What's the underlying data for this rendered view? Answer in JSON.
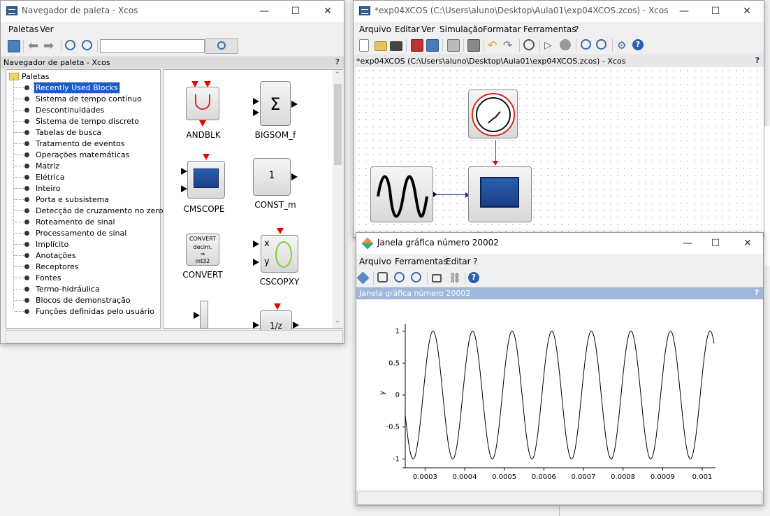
{
  "palette_window": {
    "title": "Navegador de paleta - Xcos",
    "menu": [
      "Paletas",
      "Ver"
    ],
    "search_value": "",
    "subheader": "Navegador de paleta - Xcos",
    "help": "?",
    "tree_root": "Paletas",
    "tree_items": [
      "Recently Used Blocks",
      "Sistema de tempo contínuo",
      "Descontinuidades",
      "Sistema de tempo discreto",
      "Tabelas de busca",
      "Tratamento de eventos",
      "Operações matemáticas",
      "Matriz",
      "Elétrica",
      "Inteiro",
      "Porta e subsistema",
      "Detecção de cruzamento no zero",
      "Roteamento de sinal",
      "Processamento de sinal",
      "Implícito",
      "Anotações",
      "Receptores",
      "Fontes",
      "Termo-hidráulica",
      "Blocos de demonstração",
      "Funções definidas pelo usuário"
    ],
    "selected_index": 0,
    "blocks": [
      {
        "name": "ANDBLK"
      },
      {
        "name": "BIGSOM_f",
        "symbol": "Σ"
      },
      {
        "name": "CMSCOPE"
      },
      {
        "name": "CONST_m",
        "symbol": "1"
      },
      {
        "name": "CONVERT",
        "lines": [
          "CONVERT",
          "decim.",
          "⇒",
          "int32"
        ]
      },
      {
        "name": "CSCOPXY",
        "ports": [
          "x",
          "y"
        ]
      },
      {
        "name": "",
        "symbol": "1/z"
      }
    ]
  },
  "xcos_window": {
    "title": "*exp04XCOS (C:\\Users\\aluno\\Desktop\\Aula01\\exp04XCOS.zcos) - Xcos",
    "menu": [
      "Arquivo",
      "Editar",
      "Ver",
      "Simulação",
      "Formatar",
      "Ferramentas",
      "?"
    ],
    "subheader": "*exp04XCOS (C:\\Users\\aluno\\Desktop\\Aula01\\exp04XCOS.zcos) - Xcos",
    "help": "?"
  },
  "graphic_window": {
    "title": "Janela gráfica número 20002",
    "menu": [
      "Arquivo",
      "Ferramentas",
      "Editar",
      "?"
    ],
    "subheader": "Janela gráfica número 20002",
    "help": "?"
  },
  "chart_data": {
    "type": "line",
    "title": "",
    "xlabel": "",
    "ylabel": "y",
    "xlim": [
      0.00025,
      0.00103
    ],
    "ylim": [
      -1.05,
      1.05
    ],
    "xticks": [
      "0.0003",
      "0.0004",
      "0.0005",
      "0.0006",
      "0.0007",
      "0.0008",
      "0.0009",
      "0.001"
    ],
    "yticks": [
      "1",
      "0.5",
      "0",
      "-0.5",
      "-1"
    ],
    "ytick_values": [
      1,
      0.5,
      0,
      -0.5,
      -1
    ],
    "xtick_values": [
      0.0003,
      0.0004,
      0.0005,
      0.0006,
      0.0007,
      0.0008,
      0.0009,
      0.001
    ],
    "series": [
      {
        "function": "sin",
        "frequency_hz": 10000,
        "amplitude": 1,
        "phase_at_x0": 0.55
      }
    ],
    "grid": false
  },
  "colors": {
    "selection": "#1a5dc8",
    "event_link": "#e00000",
    "data_link": "#1c2f8f",
    "subheader_graphic": "#9fb8d8"
  }
}
